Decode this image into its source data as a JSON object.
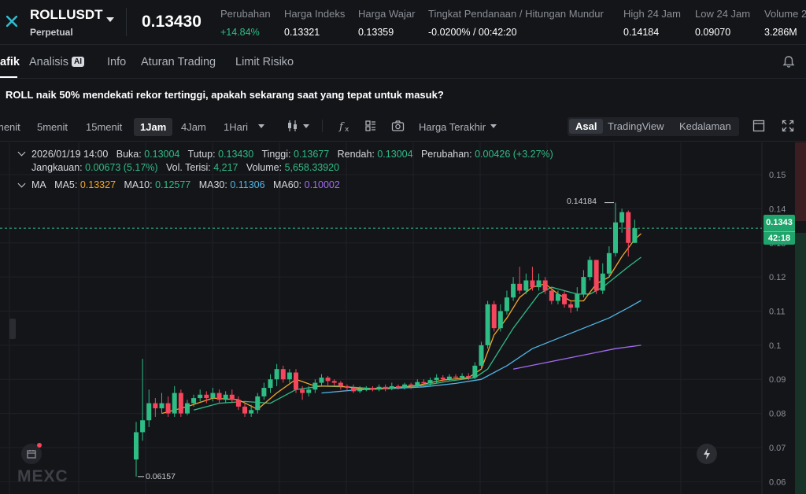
{
  "header": {
    "symbol": "ROLLUSDT",
    "contract_type": "Perpetual",
    "last_price": "0.13430",
    "stats": [
      {
        "label": "Perubahan",
        "value": "+14.84%",
        "positive": true
      },
      {
        "label": "Harga Indeks",
        "value": "0.13321"
      },
      {
        "label": "Harga Wajar",
        "value": "0.13359"
      },
      {
        "label": "Tingkat Pendanaan / Hitungan Mundur",
        "value": "-0.0200% / 00:42:20"
      },
      {
        "label": "High 24 Jam",
        "value": "0.14184"
      },
      {
        "label": "Low 24 Jam",
        "value": "0.09070"
      },
      {
        "label": "Volume 2",
        "value": "3.286M"
      }
    ]
  },
  "tabs": [
    {
      "label": "afik",
      "active": true
    },
    {
      "label": "Analisis",
      "badge": "AI"
    },
    {
      "label": "Info"
    },
    {
      "label": "Aturan Trading"
    },
    {
      "label": "Limit Risiko"
    }
  ],
  "news": "ROLL naik 50% mendekati rekor tertinggi, apakah sekarang saat yang tepat untuk masuk?",
  "toolbar": {
    "timeframes": [
      {
        "label": "menit"
      },
      {
        "label": "5menit"
      },
      {
        "label": "15menit"
      },
      {
        "label": "1Jam",
        "active": true
      },
      {
        "label": "4Jam"
      },
      {
        "label": "1Hari"
      }
    ],
    "price_source": "Harga Terakhir",
    "views": [
      {
        "label": "Asal",
        "active": true
      },
      {
        "label": "TradingView"
      },
      {
        "label": "Kedalaman"
      }
    ]
  },
  "legend": {
    "date": "2026/01/19 14:00",
    "open_label": "Buka:",
    "open": "0.13004",
    "close_label": "Tutup:",
    "close": "0.13430",
    "high_label": "Tinggi:",
    "high": "0.13677",
    "low_label": "Rendah:",
    "low": "0.13004",
    "change_label": "Perubahan:",
    "change": "0.00426 (+3.27%)",
    "range_label": "Jangkauan:",
    "range": "0.00673 (5.17%)",
    "vol_filled_label": "Vol. Terisi:",
    "vol_filled": "4,217",
    "volume_label": "Volume:",
    "volume": "5,658.33920",
    "ma_label": "MA",
    "ma5_label": "MA5:",
    "ma5": "0.13327",
    "ma10_label": "MA10:",
    "ma10": "0.12577",
    "ma30_label": "MA30:",
    "ma30": "0.11306",
    "ma60_label": "MA60:",
    "ma60": "0.10002"
  },
  "price_tag": {
    "price": "0.1343",
    "countdown": "42:18"
  },
  "watermark": "MEXC",
  "colors": {
    "up": "#2ebd85",
    "down": "#f6465d",
    "ma5": "#f0a72b",
    "ma10": "#2ebd85",
    "ma30": "#4fb6e6",
    "ma60": "#a26cf2"
  },
  "chart_data": {
    "type": "candlestick",
    "y_ticks": [
      "0.15",
      "0.14",
      "0.13",
      "0.12",
      "0.11",
      "0.1",
      "0.09",
      "0.08",
      "0.07",
      "0.06"
    ],
    "ylim": [
      0.058,
      0.156
    ],
    "max_marker": "0.14184",
    "min_marker": "0.06157",
    "candles": [
      [
        0.0665,
        0.0745,
        0.0775,
        0.0615
      ],
      [
        0.0745,
        0.078,
        0.096,
        0.072
      ],
      [
        0.078,
        0.083,
        0.087,
        0.076
      ],
      [
        0.083,
        0.0815,
        0.0845,
        0.079
      ],
      [
        0.0815,
        0.083,
        0.086,
        0.08
      ],
      [
        0.083,
        0.08,
        0.085,
        0.079
      ],
      [
        0.08,
        0.086,
        0.088,
        0.079
      ],
      [
        0.086,
        0.08,
        0.087,
        0.079
      ],
      [
        0.08,
        0.083,
        0.084,
        0.0795
      ],
      [
        0.083,
        0.0845,
        0.0855,
        0.082
      ],
      [
        0.0845,
        0.0855,
        0.087,
        0.0835
      ],
      [
        0.0855,
        0.0845,
        0.0865,
        0.083
      ],
      [
        0.0845,
        0.086,
        0.0875,
        0.0835
      ],
      [
        0.086,
        0.084,
        0.087,
        0.083
      ],
      [
        0.084,
        0.0855,
        0.0865,
        0.083
      ],
      [
        0.0855,
        0.084,
        0.087,
        0.083
      ],
      [
        0.084,
        0.082,
        0.085,
        0.081
      ],
      [
        0.082,
        0.08,
        0.083,
        0.079
      ],
      [
        0.08,
        0.081,
        0.0825,
        0.079
      ],
      [
        0.081,
        0.085,
        0.086,
        0.08
      ],
      [
        0.085,
        0.0875,
        0.089,
        0.084
      ],
      [
        0.0875,
        0.09,
        0.0915,
        0.086
      ],
      [
        0.09,
        0.093,
        0.0945,
        0.088
      ],
      [
        0.093,
        0.09,
        0.094,
        0.089
      ],
      [
        0.09,
        0.092,
        0.093,
        0.089
      ],
      [
        0.092,
        0.087,
        0.093,
        0.086
      ],
      [
        0.087,
        0.086,
        0.088,
        0.084
      ],
      [
        0.086,
        0.087,
        0.088,
        0.085
      ],
      [
        0.087,
        0.089,
        0.09,
        0.086
      ],
      [
        0.089,
        0.0905,
        0.0915,
        0.088
      ],
      [
        0.0905,
        0.0895,
        0.091,
        0.088
      ],
      [
        0.0895,
        0.089,
        0.09,
        0.088
      ],
      [
        0.089,
        0.088,
        0.0895,
        0.087
      ],
      [
        0.088,
        0.0875,
        0.0885,
        0.0865
      ],
      [
        0.0875,
        0.0865,
        0.0885,
        0.086
      ],
      [
        0.0865,
        0.087,
        0.088,
        0.086
      ],
      [
        0.087,
        0.0875,
        0.088,
        0.0865
      ],
      [
        0.0875,
        0.087,
        0.088,
        0.0865
      ],
      [
        0.087,
        0.0878,
        0.0885,
        0.0865
      ],
      [
        0.0878,
        0.0872,
        0.0885,
        0.0865
      ],
      [
        0.0872,
        0.088,
        0.089,
        0.0868
      ],
      [
        0.088,
        0.0875,
        0.0885,
        0.087
      ],
      [
        0.0875,
        0.0885,
        0.089,
        0.087
      ],
      [
        0.0885,
        0.088,
        0.089,
        0.0872
      ],
      [
        0.088,
        0.0892,
        0.09,
        0.0875
      ],
      [
        0.0892,
        0.0888,
        0.09,
        0.088
      ],
      [
        0.0888,
        0.0898,
        0.0905,
        0.088
      ],
      [
        0.0898,
        0.0905,
        0.0915,
        0.089
      ],
      [
        0.0905,
        0.09,
        0.0912,
        0.0892
      ],
      [
        0.09,
        0.0908,
        0.0915,
        0.0895
      ],
      [
        0.0908,
        0.0905,
        0.0915,
        0.0898
      ],
      [
        0.0905,
        0.091,
        0.0918,
        0.09
      ],
      [
        0.091,
        0.0905,
        0.0918,
        0.0898
      ],
      [
        0.0905,
        0.094,
        0.095,
        0.09
      ],
      [
        0.094,
        0.1,
        0.101,
        0.093
      ],
      [
        0.1,
        0.112,
        0.113,
        0.099
      ],
      [
        0.112,
        0.105,
        0.113,
        0.104
      ],
      [
        0.105,
        0.11,
        0.112,
        0.104
      ],
      [
        0.11,
        0.114,
        0.116,
        0.109
      ],
      [
        0.114,
        0.118,
        0.12,
        0.113
      ],
      [
        0.118,
        0.116,
        0.123,
        0.115
      ],
      [
        0.116,
        0.119,
        0.121,
        0.115
      ],
      [
        0.119,
        0.117,
        0.123,
        0.116
      ],
      [
        0.117,
        0.119,
        0.121,
        0.116
      ],
      [
        0.119,
        0.116,
        0.12,
        0.115
      ],
      [
        0.116,
        0.113,
        0.117,
        0.112
      ],
      [
        0.113,
        0.115,
        0.116,
        0.112
      ],
      [
        0.115,
        0.112,
        0.116,
        0.111
      ],
      [
        0.112,
        0.111,
        0.113,
        0.1095
      ],
      [
        0.111,
        0.115,
        0.117,
        0.11
      ],
      [
        0.115,
        0.12,
        0.122,
        0.114
      ],
      [
        0.12,
        0.125,
        0.126,
        0.119
      ],
      [
        0.125,
        0.116,
        0.125,
        0.115
      ],
      [
        0.116,
        0.121,
        0.124,
        0.115
      ],
      [
        0.121,
        0.127,
        0.129,
        0.12
      ],
      [
        0.127,
        0.136,
        0.1418,
        0.126
      ],
      [
        0.136,
        0.139,
        0.14,
        0.133
      ],
      [
        0.139,
        0.13,
        0.1395,
        0.126
      ],
      [
        0.13,
        0.1343,
        0.1368,
        0.13
      ]
    ],
    "ma5": [
      [
        4,
        0.08
      ],
      [
        8,
        0.082
      ],
      [
        12,
        0.0845
      ],
      [
        16,
        0.084
      ],
      [
        19,
        0.0812
      ],
      [
        22,
        0.086
      ],
      [
        25,
        0.09
      ],
      [
        28,
        0.088
      ],
      [
        32,
        0.088
      ],
      [
        36,
        0.087
      ],
      [
        40,
        0.0875
      ],
      [
        44,
        0.0882
      ],
      [
        48,
        0.0898
      ],
      [
        52,
        0.0905
      ],
      [
        54,
        0.093
      ],
      [
        56,
        0.103
      ],
      [
        58,
        0.108
      ],
      [
        60,
        0.114
      ],
      [
        62,
        0.117
      ],
      [
        64,
        0.118
      ],
      [
        66,
        0.115
      ],
      [
        68,
        0.113
      ],
      [
        70,
        0.113
      ],
      [
        72,
        0.118
      ],
      [
        74,
        0.12
      ],
      [
        76,
        0.126
      ],
      [
        78,
        0.131
      ],
      [
        79,
        0.1327
      ]
    ],
    "ma10": [
      [
        9,
        0.081
      ],
      [
        13,
        0.083
      ],
      [
        17,
        0.0835
      ],
      [
        21,
        0.083
      ],
      [
        25,
        0.087
      ],
      [
        29,
        0.088
      ],
      [
        33,
        0.0878
      ],
      [
        37,
        0.0873
      ],
      [
        41,
        0.0876
      ],
      [
        45,
        0.0882
      ],
      [
        49,
        0.0895
      ],
      [
        53,
        0.0905
      ],
      [
        55,
        0.093
      ],
      [
        57,
        0.099
      ],
      [
        59,
        0.105
      ],
      [
        61,
        0.11
      ],
      [
        63,
        0.115
      ],
      [
        65,
        0.117
      ],
      [
        67,
        0.116
      ],
      [
        69,
        0.115
      ],
      [
        71,
        0.115
      ],
      [
        73,
        0.117
      ],
      [
        75,
        0.12
      ],
      [
        77,
        0.123
      ],
      [
        79,
        0.1258
      ]
    ],
    "ma30": [
      [
        29,
        0.086
      ],
      [
        35,
        0.087
      ],
      [
        40,
        0.0873
      ],
      [
        45,
        0.0878
      ],
      [
        50,
        0.0888
      ],
      [
        54,
        0.09
      ],
      [
        58,
        0.094
      ],
      [
        62,
        0.099
      ],
      [
        66,
        0.102
      ],
      [
        70,
        0.105
      ],
      [
        74,
        0.108
      ],
      [
        77,
        0.111
      ],
      [
        79,
        0.1131
      ]
    ],
    "ma60": [
      [
        59,
        0.093
      ],
      [
        63,
        0.0945
      ],
      [
        67,
        0.096
      ],
      [
        71,
        0.0975
      ],
      [
        75,
        0.099
      ],
      [
        79,
        0.1
      ]
    ]
  }
}
